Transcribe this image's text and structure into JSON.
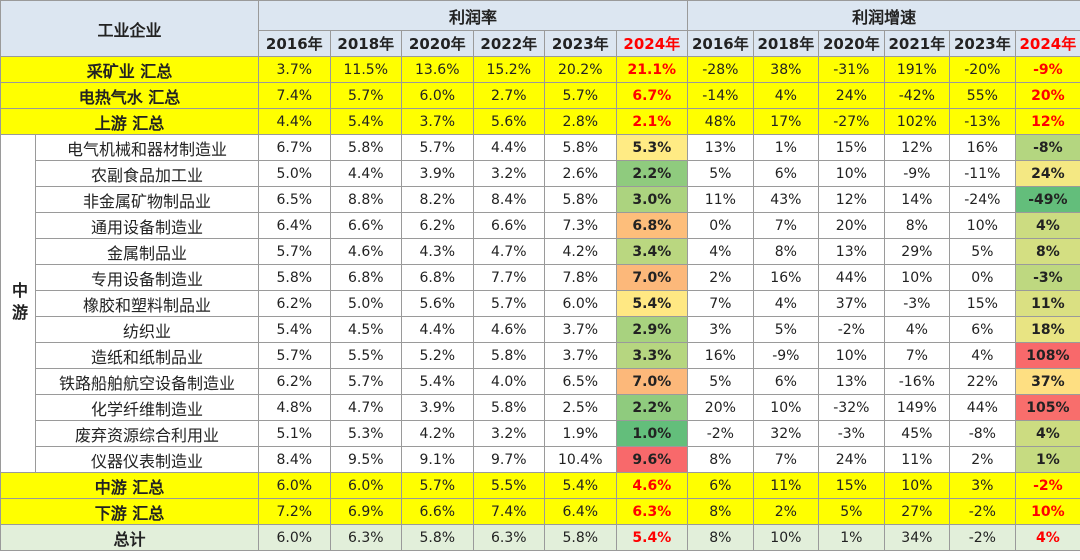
{
  "header": {
    "title": "工业企业",
    "margin_label": "利润率",
    "growth_label": "利润增速",
    "margin_years": [
      "2016年",
      "2018年",
      "2020年",
      "2022年",
      "2023年",
      "2024年"
    ],
    "growth_years": [
      "2016年",
      "2018年",
      "2020年",
      "2021年",
      "2023年",
      "2024年"
    ]
  },
  "side_label": "中游",
  "top_rows": [
    {
      "name": "采矿业 汇总",
      "margin": [
        "3.7%",
        "11.5%",
        "13.6%",
        "15.2%",
        "20.2%",
        "21.1%"
      ],
      "growth": [
        "-28%",
        "38%",
        "-31%",
        "191%",
        "-20%",
        "-9%"
      ]
    },
    {
      "name": "电热气水 汇总",
      "margin": [
        "7.4%",
        "5.7%",
        "6.0%",
        "2.7%",
        "5.7%",
        "6.7%"
      ],
      "growth": [
        "-14%",
        "4%",
        "24%",
        "-42%",
        "55%",
        "20%"
      ]
    },
    {
      "name": "上游 汇总",
      "margin": [
        "4.4%",
        "5.4%",
        "3.7%",
        "5.6%",
        "2.8%",
        "2.1%"
      ],
      "growth": [
        "48%",
        "17%",
        "-27%",
        "102%",
        "-13%",
        "12%"
      ]
    }
  ],
  "middle_rows": [
    {
      "name": "电气机械和器材制造业",
      "margin": [
        "6.7%",
        "5.8%",
        "5.7%",
        "4.4%",
        "5.8%",
        "5.3%"
      ],
      "growth": [
        "13%",
        "1%",
        "15%",
        "12%",
        "16%",
        "-8%"
      ]
    },
    {
      "name": "农副食品加工业",
      "margin": [
        "5.0%",
        "4.4%",
        "3.9%",
        "3.2%",
        "2.6%",
        "2.2%"
      ],
      "growth": [
        "5%",
        "6%",
        "10%",
        "-9%",
        "-11%",
        "24%"
      ]
    },
    {
      "name": "非金属矿物制品业",
      "margin": [
        "6.5%",
        "8.8%",
        "8.2%",
        "8.4%",
        "5.8%",
        "3.0%"
      ],
      "growth": [
        "11%",
        "43%",
        "12%",
        "14%",
        "-24%",
        "-49%"
      ]
    },
    {
      "name": "通用设备制造业",
      "margin": [
        "6.4%",
        "6.6%",
        "6.2%",
        "6.6%",
        "7.3%",
        "6.8%"
      ],
      "growth": [
        "0%",
        "7%",
        "20%",
        "8%",
        "10%",
        "4%"
      ]
    },
    {
      "name": "金属制品业",
      "margin": [
        "5.7%",
        "4.6%",
        "4.3%",
        "4.7%",
        "4.2%",
        "3.4%"
      ],
      "growth": [
        "4%",
        "8%",
        "13%",
        "29%",
        "5%",
        "8%"
      ]
    },
    {
      "name": "专用设备制造业",
      "margin": [
        "5.8%",
        "6.8%",
        "6.8%",
        "7.7%",
        "7.8%",
        "7.0%"
      ],
      "growth": [
        "2%",
        "16%",
        "44%",
        "10%",
        "0%",
        "-3%"
      ]
    },
    {
      "name": "橡胶和塑料制品业",
      "margin": [
        "6.2%",
        "5.0%",
        "5.6%",
        "5.7%",
        "6.0%",
        "5.4%"
      ],
      "growth": [
        "7%",
        "4%",
        "37%",
        "-3%",
        "15%",
        "11%"
      ]
    },
    {
      "name": "纺织业",
      "margin": [
        "5.4%",
        "4.5%",
        "4.4%",
        "4.6%",
        "3.7%",
        "2.9%"
      ],
      "growth": [
        "3%",
        "5%",
        "-2%",
        "4%",
        "6%",
        "18%"
      ]
    },
    {
      "name": "造纸和纸制品业",
      "margin": [
        "5.7%",
        "5.5%",
        "5.2%",
        "5.8%",
        "3.7%",
        "3.3%"
      ],
      "growth": [
        "16%",
        "-9%",
        "10%",
        "7%",
        "4%",
        "108%"
      ]
    },
    {
      "name": "铁路船舶航空设备制造业",
      "margin": [
        "6.2%",
        "5.7%",
        "5.4%",
        "4.0%",
        "6.5%",
        "7.0%"
      ],
      "growth": [
        "5%",
        "6%",
        "13%",
        "-16%",
        "22%",
        "37%"
      ]
    },
    {
      "name": "化学纤维制造业",
      "margin": [
        "4.8%",
        "4.7%",
        "3.9%",
        "5.8%",
        "2.5%",
        "2.2%"
      ],
      "growth": [
        "20%",
        "10%",
        "-32%",
        "149%",
        "44%",
        "105%"
      ]
    },
    {
      "name": "废弃资源综合利用业",
      "margin": [
        "5.1%",
        "5.3%",
        "4.2%",
        "3.2%",
        "1.9%",
        "1.0%"
      ],
      "growth": [
        "-2%",
        "32%",
        "-3%",
        "45%",
        "-8%",
        "4%"
      ]
    },
    {
      "name": "仪器仪表制造业",
      "margin": [
        "8.4%",
        "9.5%",
        "9.1%",
        "9.7%",
        "10.4%",
        "9.6%"
      ],
      "growth": [
        "8%",
        "7%",
        "24%",
        "11%",
        "2%",
        "1%"
      ]
    }
  ],
  "bottom_rows": [
    {
      "name": "中游 汇总",
      "margin": [
        "6.0%",
        "6.0%",
        "5.7%",
        "5.5%",
        "5.4%",
        "4.6%"
      ],
      "growth": [
        "6%",
        "11%",
        "15%",
        "10%",
        "3%",
        "-2%"
      ]
    },
    {
      "name": "下游 汇总",
      "margin": [
        "7.2%",
        "6.9%",
        "6.6%",
        "7.4%",
        "6.4%",
        "6.3%"
      ],
      "growth": [
        "8%",
        "2%",
        "5%",
        "27%",
        "-2%",
        "10%"
      ]
    }
  ],
  "total_row": {
    "name": "总计",
    "margin": [
      "6.0%",
      "6.3%",
      "5.8%",
      "6.3%",
      "5.8%",
      "5.4%"
    ],
    "growth": [
      "8%",
      "10%",
      "1%",
      "34%",
      "-2%",
      "4%"
    ]
  }
}
